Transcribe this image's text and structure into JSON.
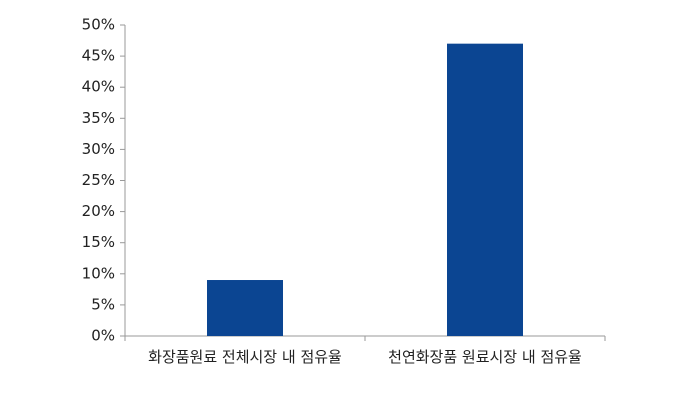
{
  "chart_data": {
    "type": "bar",
    "categories": [
      "화장품원료 전체시장 내 점유율",
      "천연화장품 원료시장 내 점유율"
    ],
    "values": [
      9,
      47
    ],
    "color": "#0b4592",
    "ylim": [
      0,
      50
    ],
    "yticks": [
      {
        "value": 0,
        "label": "0%"
      },
      {
        "value": 5,
        "label": "5%"
      },
      {
        "value": 10,
        "label": "10%"
      },
      {
        "value": 15,
        "label": "15%"
      },
      {
        "value": 20,
        "label": "20%"
      },
      {
        "value": 25,
        "label": "25%"
      },
      {
        "value": 30,
        "label": "30%"
      },
      {
        "value": 35,
        "label": "35%"
      },
      {
        "value": 40,
        "label": "40%"
      },
      {
        "value": 45,
        "label": "45%"
      },
      {
        "value": 50,
        "label": "50%"
      }
    ],
    "grid": false
  }
}
